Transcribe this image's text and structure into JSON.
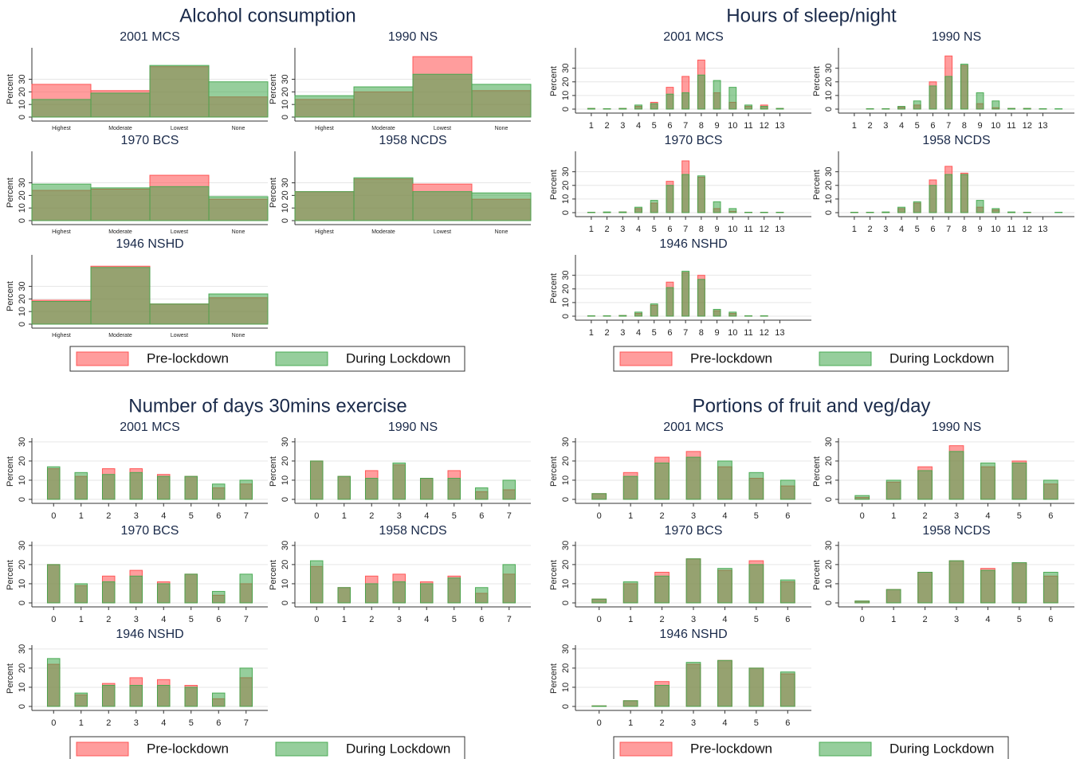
{
  "chart_data": [
    {
      "type": "bar",
      "title": "Alcohol consumption",
      "ylabel": "Percent",
      "panels": [
        "2001 MCS",
        "1990 NS",
        "1970 BCS",
        "1958 NCDS",
        "1946 NSHD"
      ],
      "categories": [
        "Highest",
        "Moderate",
        "Lowest",
        "None"
      ],
      "ylim": [
        0,
        55
      ],
      "yticks": [
        0,
        10,
        20,
        30
      ],
      "grid": true,
      "series": [
        {
          "name": "Pre-lockdown",
          "color": "#ff4d4d",
          "values": [
            [
              26,
              21,
              40,
              16
            ],
            [
              14,
              20,
              48,
              21
            ],
            [
              24,
              25,
              36,
              17
            ],
            [
              23,
              33,
              29,
              17
            ],
            [
              19,
              46,
              16,
              21
            ]
          ]
        },
        {
          "name": "During Lockdown",
          "color": "#3fa64a",
          "values": [
            [
              14,
              19,
              41,
              28
            ],
            [
              17,
              24,
              34,
              26
            ],
            [
              29,
              26,
              27,
              19
            ],
            [
              23,
              34,
              23,
              22
            ],
            [
              18,
              45,
              16,
              24
            ]
          ]
        }
      ]
    },
    {
      "type": "bar",
      "title": "Hours of sleep/night",
      "ylabel": "Percent",
      "panels": [
        "2001 MCS",
        "1990 NS",
        "1970 BCS",
        "1958 NCDS",
        "1946 NSHD"
      ],
      "categories": [
        "1",
        "2",
        "3",
        "4",
        "5",
        "6",
        "7",
        "8",
        "9",
        "10",
        "11",
        "12",
        "13",
        null
      ],
      "ylim": [
        0,
        45
      ],
      "yticks": [
        0,
        10,
        20,
        30
      ],
      "grid": true,
      "series": [
        {
          "name": "Pre-lockdown",
          "color": "#ff4d4d",
          "values": [
            [
              0.5,
              0.3,
              0.5,
              2,
              5,
              16,
              24,
              36,
              12,
              5,
              2,
              3,
              0.5,
              0
            ],
            [
              0,
              0.3,
              0.3,
              1.5,
              3,
              20,
              39,
              32,
              4,
              1,
              0.5,
              0.5,
              0.2,
              0
            ],
            [
              0.3,
              0.3,
              0.5,
              3,
              7,
              23,
              38,
              26,
              3,
              1,
              0.3,
              0.3,
              0.3,
              0
            ],
            [
              0.3,
              0.3,
              0.3,
              3,
              7,
              24,
              34,
              29,
              4,
              2,
              0.3,
              0.3,
              0,
              0
            ],
            [
              0.3,
              0.3,
              0.5,
              2,
              8,
              25,
              32,
              30,
              4,
              2,
              0.3,
              0.3,
              0,
              0
            ]
          ]
        },
        {
          "name": "During Lockdown",
          "color": "#3fa64a",
          "values": [
            [
              0.5,
              0.3,
              0.5,
              3,
              4,
              11,
              12,
              25,
              21,
              16,
              3,
              2,
              0.5,
              0
            ],
            [
              0,
              0.3,
              0.3,
              2,
              6,
              17,
              24,
              33,
              12,
              6,
              0.5,
              0.5,
              0.3,
              0.3
            ],
            [
              0.3,
              0.5,
              0.5,
              4,
              9,
              20,
              28,
              27,
              8,
              3,
              0.3,
              0.3,
              0.3,
              0
            ],
            [
              0.3,
              0.3,
              0.5,
              4,
              8,
              20,
              28,
              28,
              9,
              3,
              0.5,
              0.3,
              0,
              0.3
            ],
            [
              0.3,
              0.3,
              0.5,
              3,
              9,
              21,
              33,
              27,
              5,
              3,
              0.3,
              0.3,
              0,
              0
            ]
          ]
        }
      ]
    },
    {
      "type": "bar",
      "title": "Number of days 30mins exercise",
      "ylabel": "Percent",
      "panels": [
        "2001 MCS",
        "1990 NS",
        "1970 BCS",
        "1958 NCDS",
        "1946 NSHD"
      ],
      "categories": [
        "0",
        "1",
        "2",
        "3",
        "4",
        "5",
        "6",
        "7"
      ],
      "ylim": [
        0,
        32
      ],
      "yticks": [
        0,
        10,
        20,
        30
      ],
      "grid": true,
      "series": [
        {
          "name": "Pre-lockdown",
          "color": "#ff4d4d",
          "values": [
            [
              16,
              12,
              16,
              16,
              13,
              12,
              6,
              8
            ],
            [
              20,
              12,
              15,
              18,
              11,
              15,
              4,
              5
            ],
            [
              20,
              9,
              14,
              17,
              11,
              15,
              4,
              10
            ],
            [
              19,
              8,
              14,
              15,
              11,
              14,
              5,
              15
            ],
            [
              22,
              6,
              12,
              15,
              14,
              11,
              4,
              15
            ]
          ]
        },
        {
          "name": "During Lockdown",
          "color": "#3fa64a",
          "values": [
            [
              17,
              14,
              13,
              14,
              12,
              12,
              8,
              10
            ],
            [
              20,
              12,
              11,
              19,
              11,
              11,
              6,
              10
            ],
            [
              20,
              10,
              11,
              14,
              10,
              15,
              6,
              15
            ],
            [
              22,
              8,
              10,
              11,
              10,
              13,
              8,
              20
            ],
            [
              25,
              7,
              11,
              11,
              11,
              10,
              7,
              20
            ]
          ]
        }
      ]
    },
    {
      "type": "bar",
      "title": "Portions of fruit and veg/day",
      "ylabel": "Percent",
      "panels": [
        "2001 MCS",
        "1990 NS",
        "1970 BCS",
        "1958 NCDS",
        "1946 NSHD"
      ],
      "categories": [
        "0",
        "1",
        "2",
        "3",
        "4",
        "5",
        "6"
      ],
      "ylim": [
        0,
        32
      ],
      "yticks": [
        0,
        10,
        20,
        30
      ],
      "grid": true,
      "series": [
        {
          "name": "Pre-lockdown",
          "color": "#ff4d4d",
          "values": [
            [
              3,
              14,
              22,
              25,
              17,
              11,
              7
            ],
            [
              1,
              9,
              17,
              28,
              17,
              20,
              8
            ],
            [
              2,
              10,
              16,
              23,
              17,
              22,
              11
            ],
            [
              1,
              7,
              16,
              22,
              18,
              21,
              14
            ],
            [
              0.3,
              3,
              13,
              22,
              24,
              20,
              17
            ]
          ]
        },
        {
          "name": "During Lockdown",
          "color": "#3fa64a",
          "values": [
            [
              3,
              12,
              19,
              22,
              20,
              14,
              10
            ],
            [
              2,
              10,
              15,
              25,
              19,
              19,
              10
            ],
            [
              2,
              11,
              14,
              23,
              18,
              20,
              12
            ],
            [
              1,
              7,
              16,
              22,
              17,
              21,
              16
            ],
            [
              0.3,
              3,
              11,
              23,
              24,
              20,
              18
            ]
          ]
        }
      ]
    }
  ]
}
